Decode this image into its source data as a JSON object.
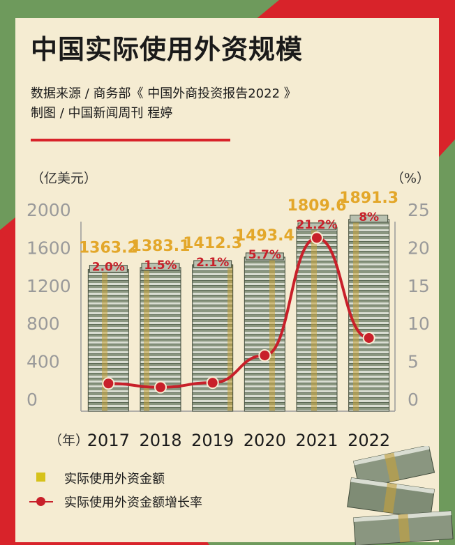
{
  "title": "中国实际使用外资规模",
  "source_line": "数据来源 / 商务部《 中国外商投资报告2022 》",
  "maker_line": "制图 / 中国新闻周刊 程婷",
  "colors": {
    "background_red": "#d8232a",
    "background_green": "#6e9a5c",
    "card": "#f5ecd2",
    "value_label": "#e3a72a",
    "growth_line": "#c8202a",
    "axis_tick": "#9a9a9a",
    "legend_square": "#d6c21a"
  },
  "chart_data": {
    "type": "bar",
    "categories": [
      "2017",
      "2018",
      "2019",
      "2020",
      "2021",
      "2022"
    ],
    "xlabel": "（年）",
    "ylabel": "（亿美元）",
    "y2label": "（%）",
    "ylim": [
      0,
      2000
    ],
    "yticks": [
      "2000",
      "1600",
      "1200",
      "800",
      "400",
      "0"
    ],
    "y2lim": [
      0,
      25
    ],
    "y2ticks": [
      "25",
      "20",
      "15",
      "10",
      "5",
      "0"
    ],
    "series": [
      {
        "name": "实际使用外资金额",
        "type": "bar",
        "values": [
          1363.2,
          1383.1,
          1412.3,
          1493.4,
          1809.6,
          1891.3
        ],
        "labels": [
          "1363.2",
          "1383.1",
          "1412.3",
          "1493.4",
          "1809.6",
          "1891.3"
        ],
        "icon": "cash-stack-icon"
      },
      {
        "name": "实际使用外资金额增长率",
        "type": "line",
        "axis": "right",
        "values": [
          2.0,
          1.5,
          2.1,
          5.7,
          21.2,
          8
        ],
        "labels": [
          "2.0%",
          "1.5%",
          "2.1%",
          "5.7%",
          "21.2%",
          "8%"
        ]
      }
    ],
    "grid": false,
    "legend": "bottom-left"
  }
}
